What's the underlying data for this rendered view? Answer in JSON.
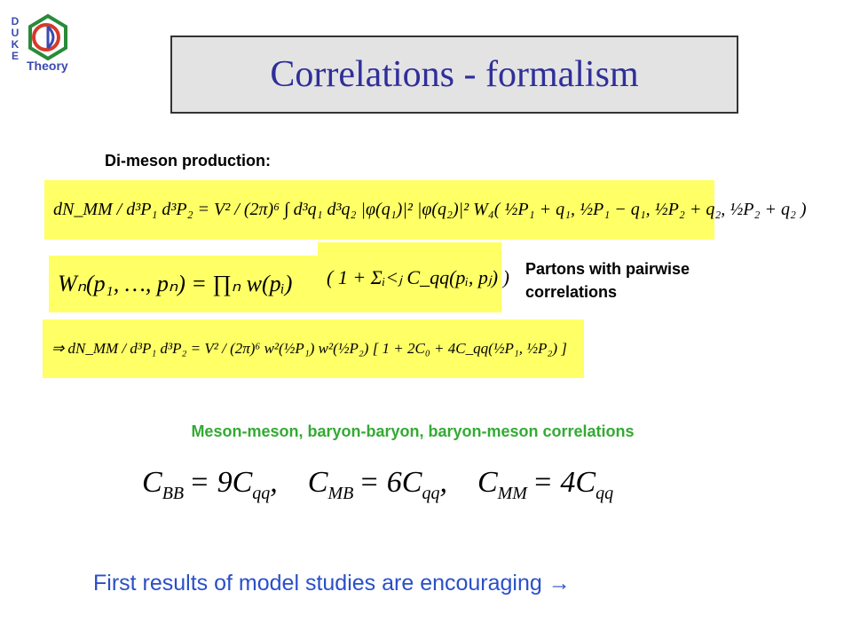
{
  "logo": {
    "letters": [
      "D",
      "U",
      "K",
      "E"
    ],
    "label": "Theory"
  },
  "header": {
    "title": "Correlations - formalism"
  },
  "section": {
    "heading": "Di-meson production:"
  },
  "equations": {
    "di_meson": "dN_MM / d³P₁ d³P₂ = V² / (2π)⁶ ∫ d³q₁ d³q₂ |φ(q₁)|² |φ(q₂)|² W₄( ½P₁ + q₁, ½P₁ − q₁, ½P₂ + q₂, ½P₂ + q₂ )",
    "w_product": "Wₙ(p₁, …, pₙ) = ∏ₙ w(pᵢ)",
    "w_correction": "( 1 + Σᵢ<ⱼ C_qq(pᵢ, pⱼ) )",
    "result": "⇒ dN_MM / d³P₁ d³P₂ = V² / (2π)⁶ w²(½P₁) w²(½P₂) [ 1 + 2C₀ + 4C_qq(½P₁, ½P₂) ]"
  },
  "note": {
    "lines": [
      "Partons with pairwise",
      "correlations"
    ]
  },
  "subheading": "Meson-meson, baryon-baryon, baryon-meson correlations",
  "relations": [
    {
      "symbol": "C",
      "index": "BB",
      "equals": "= 9C",
      "factor_index": "qq",
      "separator": ","
    },
    {
      "symbol": "C",
      "index": "MB",
      "equals": "= 6C",
      "factor_index": "qq",
      "separator": ","
    },
    {
      "symbol": "C",
      "index": "MM",
      "equals": "= 4C",
      "factor_index": "qq",
      "separator": ""
    }
  ],
  "footer": "First results of model studies are encouraging →"
}
